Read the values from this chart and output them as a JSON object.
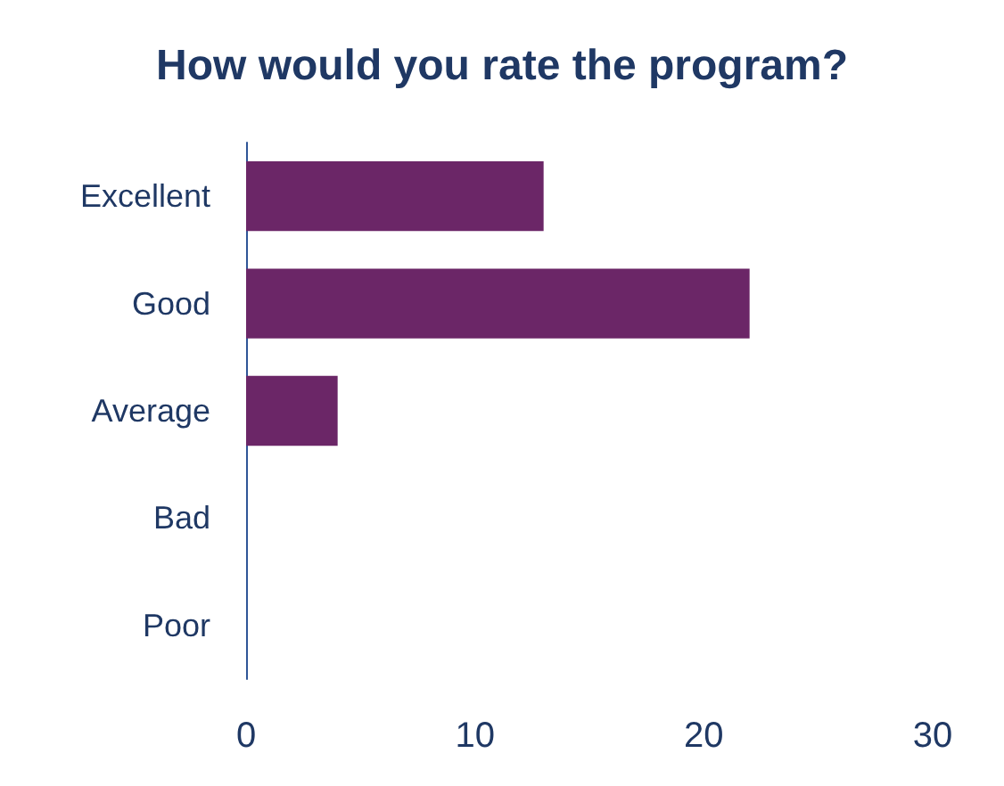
{
  "chart_data": {
    "type": "bar",
    "orientation": "horizontal",
    "title": "How would you rate the program?",
    "categories": [
      "Excellent",
      "Good",
      "Average",
      "Bad",
      "Poor"
    ],
    "values": [
      13,
      22,
      4,
      0,
      0
    ],
    "color": "#6b2667",
    "xlim": [
      0,
      30
    ],
    "xticks": [
      0,
      10,
      20,
      30
    ],
    "grid": false
  }
}
